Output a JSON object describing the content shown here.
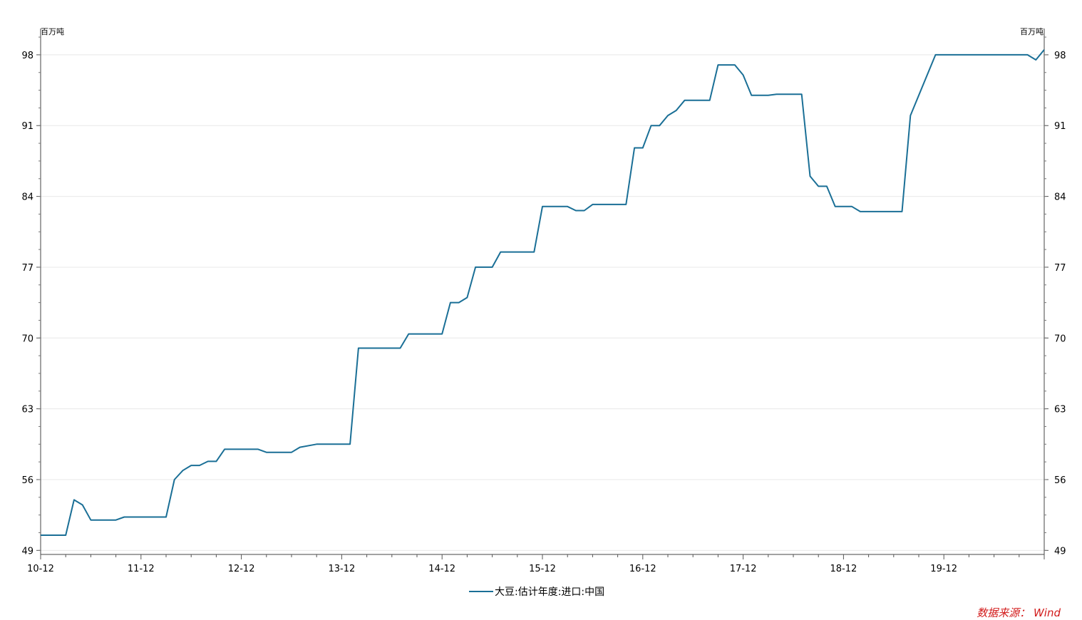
{
  "chart_data": {
    "type": "line",
    "unit_left": "百万吨",
    "unit_right": "百万吨",
    "ylim": [
      48.6,
      100.6
    ],
    "yticks": [
      49,
      56,
      63,
      70,
      77,
      84,
      91,
      98
    ],
    "xticks": [
      "10-12",
      "11-12",
      "12-12",
      "13-12",
      "14-12",
      "15-12",
      "16-12",
      "17-12",
      "18-12",
      "19-12"
    ],
    "x_range": [
      "2010-12",
      "2020-12"
    ],
    "grid": true,
    "legend_position": "bottom",
    "series": [
      {
        "name": "大豆:估计年度:进口:中国",
        "color": "#1a6f96",
        "points": [
          [
            "2010-12",
            50.5
          ],
          [
            "2011-03",
            50.5
          ],
          [
            "2011-04",
            54.0
          ],
          [
            "2011-05",
            53.5
          ],
          [
            "2011-06",
            52.0
          ],
          [
            "2011-09",
            52.0
          ],
          [
            "2011-10",
            52.3
          ],
          [
            "2012-03",
            52.3
          ],
          [
            "2012-04",
            56.0
          ],
          [
            "2012-05",
            56.9
          ],
          [
            "2012-06",
            57.4
          ],
          [
            "2012-07",
            57.4
          ],
          [
            "2012-08",
            57.8
          ],
          [
            "2012-09",
            57.8
          ],
          [
            "2012-10",
            59.0
          ],
          [
            "2013-02",
            59.0
          ],
          [
            "2013-03",
            58.7
          ],
          [
            "2013-06",
            58.7
          ],
          [
            "2013-07",
            59.2
          ],
          [
            "2013-09",
            59.5
          ],
          [
            "2014-01",
            59.5
          ],
          [
            "2014-02",
            69.0
          ],
          [
            "2014-07",
            69.0
          ],
          [
            "2014-08",
            70.4
          ],
          [
            "2014-12",
            70.4
          ],
          [
            "2015-01",
            73.5
          ],
          [
            "2015-02",
            73.5
          ],
          [
            "2015-03",
            74.0
          ],
          [
            "2015-04",
            77.0
          ],
          [
            "2015-06",
            77.0
          ],
          [
            "2015-07",
            78.5
          ],
          [
            "2015-11",
            78.5
          ],
          [
            "2015-12",
            83.0
          ],
          [
            "2016-03",
            83.0
          ],
          [
            "2016-04",
            82.6
          ],
          [
            "2016-05",
            82.6
          ],
          [
            "2016-06",
            83.2
          ],
          [
            "2016-10",
            83.2
          ],
          [
            "2016-11",
            88.8
          ],
          [
            "2016-12",
            88.8
          ],
          [
            "2017-01",
            91.0
          ],
          [
            "2017-02",
            91.0
          ],
          [
            "2017-03",
            92.0
          ],
          [
            "2017-04",
            92.5
          ],
          [
            "2017-05",
            93.5
          ],
          [
            "2017-08",
            93.5
          ],
          [
            "2017-09",
            97.0
          ],
          [
            "2017-11",
            97.0
          ],
          [
            "2017-12",
            96.0
          ],
          [
            "2018-01",
            94.0
          ],
          [
            "2018-03",
            94.0
          ],
          [
            "2018-04",
            94.1
          ],
          [
            "2018-07",
            94.1
          ],
          [
            "2018-08",
            86.0
          ],
          [
            "2018-09",
            85.0
          ],
          [
            "2018-10",
            85.0
          ],
          [
            "2018-11",
            83.0
          ],
          [
            "2019-01",
            83.0
          ],
          [
            "2019-02",
            82.5
          ],
          [
            "2019-07",
            82.5
          ],
          [
            "2019-08",
            92.0
          ],
          [
            "2019-11",
            98.0
          ],
          [
            "2020-10",
            98.0
          ],
          [
            "2020-11",
            97.5
          ],
          [
            "2020-12",
            98.5
          ]
        ]
      }
    ]
  },
  "legend": {
    "label": "大豆:估计年度:进口:中国"
  },
  "source": {
    "text": "数据来源： Wind"
  }
}
